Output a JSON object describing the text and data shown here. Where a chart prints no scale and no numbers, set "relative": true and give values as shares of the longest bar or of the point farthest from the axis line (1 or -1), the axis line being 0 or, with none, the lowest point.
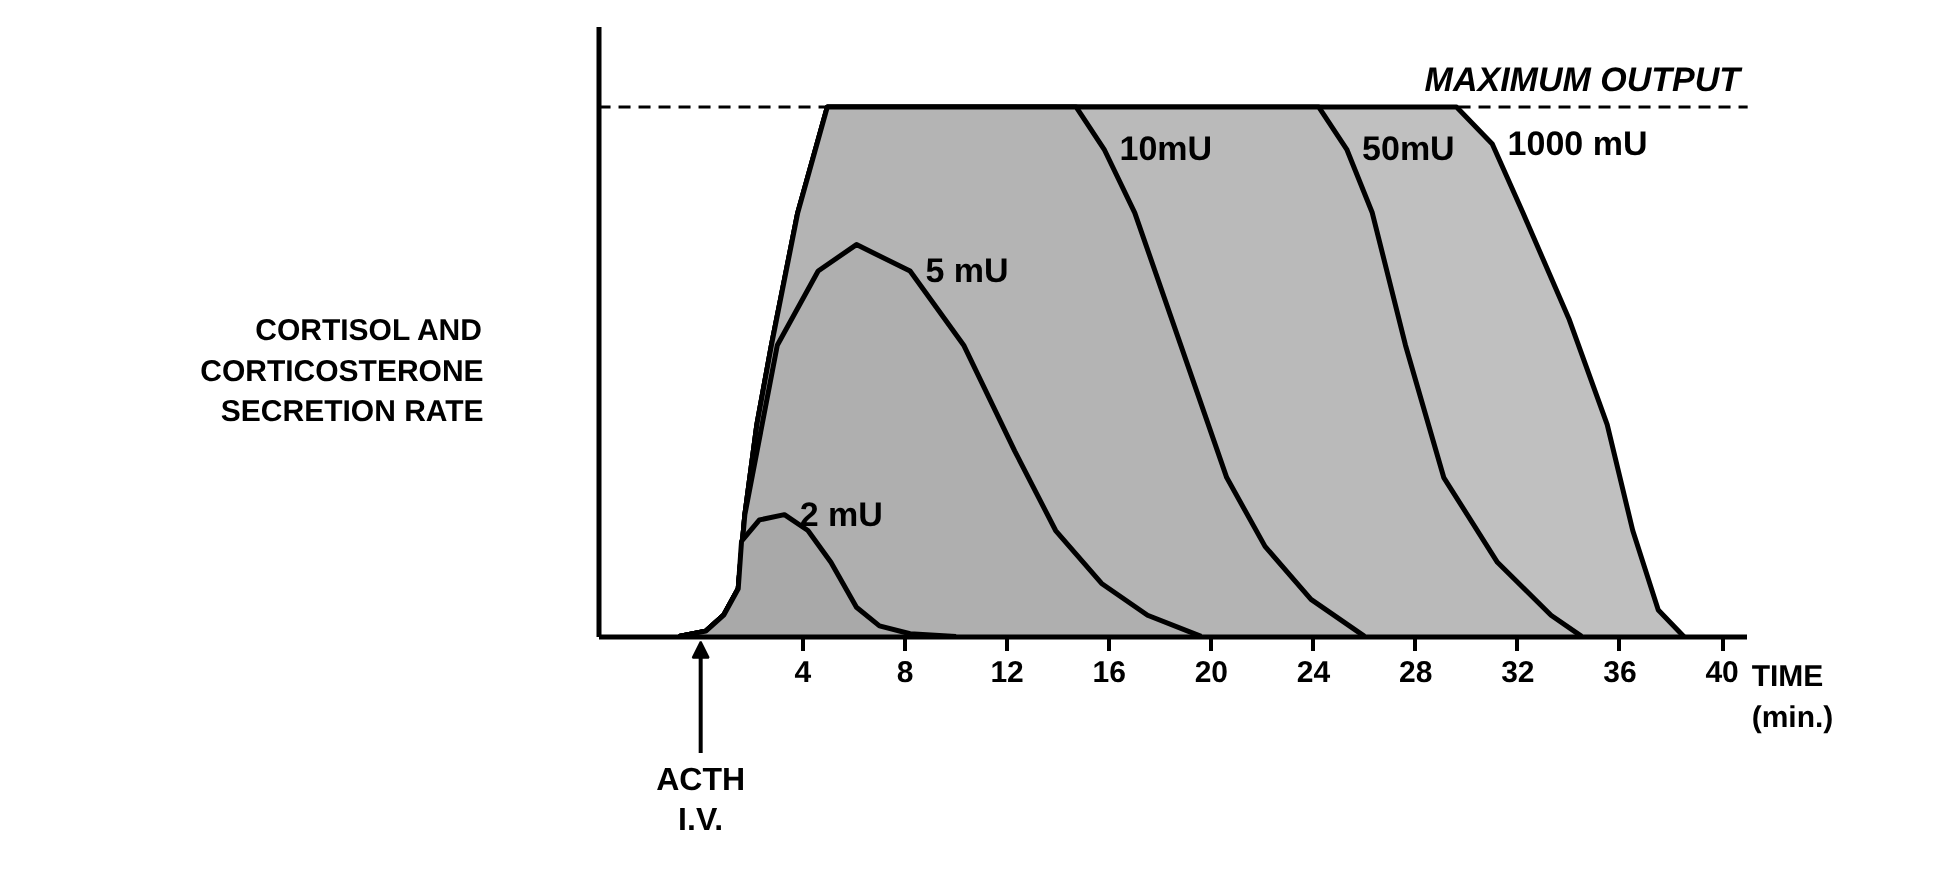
{
  "chart_data": {
    "type": "area",
    "relative": true,
    "ylabel": "CORTISOL AND\nCORTICOSTERONE\nSECRETION RATE",
    "xlabel": "TIME\n(min.)",
    "xlim": [
      -4,
      41
    ],
    "xticks": [
      4,
      8,
      12,
      16,
      20,
      24,
      28,
      32,
      36,
      40
    ],
    "grid": false,
    "ref_lines": [
      {
        "axis": "y",
        "value": 1,
        "label": "MAXIMUM OUTPUT",
        "line_style": "dashed"
      }
    ],
    "annotations": [
      {
        "text": "ACTH\nI.V.",
        "x": 0,
        "y": 0
      }
    ],
    "series": [
      {
        "name": "2 mU",
        "color": "#a9a9a9",
        "x": [
          -0.85,
          0.2,
          0.9,
          1.47,
          1.6,
          2.3,
          3.28,
          4.2,
          5.1,
          6.1,
          7,
          8.2,
          10
        ],
        "values": [
          0,
          0.01,
          0.04,
          0.09,
          0.18,
          0.22,
          0.23,
          0.2,
          0.14,
          0.055,
          0.02,
          0.005,
          0
        ]
      },
      {
        "name": "5 mU",
        "color": "#afafaf",
        "x": [
          -0.85,
          0.2,
          0.9,
          1.47,
          1.73,
          3.0,
          4.6,
          6.1,
          8.2,
          10.3,
          12.3,
          13.9,
          15.7,
          17.5,
          19.6
        ],
        "values": [
          0,
          0.01,
          0.04,
          0.09,
          0.23,
          0.55,
          0.69,
          0.74,
          0.69,
          0.55,
          0.35,
          0.2,
          0.1,
          0.04,
          0
        ]
      },
      {
        "name": "10mU",
        "color": "#b4b4b4",
        "x": [
          -0.85,
          0.2,
          0.9,
          1.47,
          1.73,
          2.2,
          2.77,
          3.8,
          4.96,
          14.7,
          15.8,
          17,
          18.8,
          20.6,
          22.1,
          23.9,
          26
        ],
        "values": [
          0,
          0.01,
          0.04,
          0.09,
          0.23,
          0.4,
          0.55,
          0.8,
          1,
          1,
          0.92,
          0.8,
          0.55,
          0.3,
          0.17,
          0.07,
          0
        ]
      },
      {
        "name": "50mU",
        "color": "#bababa",
        "x": [
          -0.85,
          0.2,
          0.9,
          1.47,
          1.73,
          2.2,
          2.77,
          3.8,
          4.96,
          24.2,
          25.3,
          26.3,
          27.6,
          29.1,
          31.2,
          33.3,
          34.5
        ],
        "values": [
          0,
          0.01,
          0.04,
          0.09,
          0.23,
          0.4,
          0.55,
          0.8,
          1,
          1,
          0.92,
          0.8,
          0.55,
          0.3,
          0.14,
          0.04,
          0
        ]
      },
      {
        "name": "1000 mU",
        "color": "#c0c0c0",
        "x": [
          -0.85,
          0.2,
          0.9,
          1.47,
          1.73,
          2.2,
          2.77,
          3.8,
          4.96,
          29.6,
          31,
          32.2,
          34,
          35.5,
          36.5,
          37.5,
          38.5
        ],
        "values": [
          0,
          0.01,
          0.04,
          0.09,
          0.23,
          0.4,
          0.55,
          0.8,
          1,
          1,
          0.93,
          0.8,
          0.6,
          0.4,
          0.2,
          0.05,
          0
        ]
      }
    ]
  }
}
